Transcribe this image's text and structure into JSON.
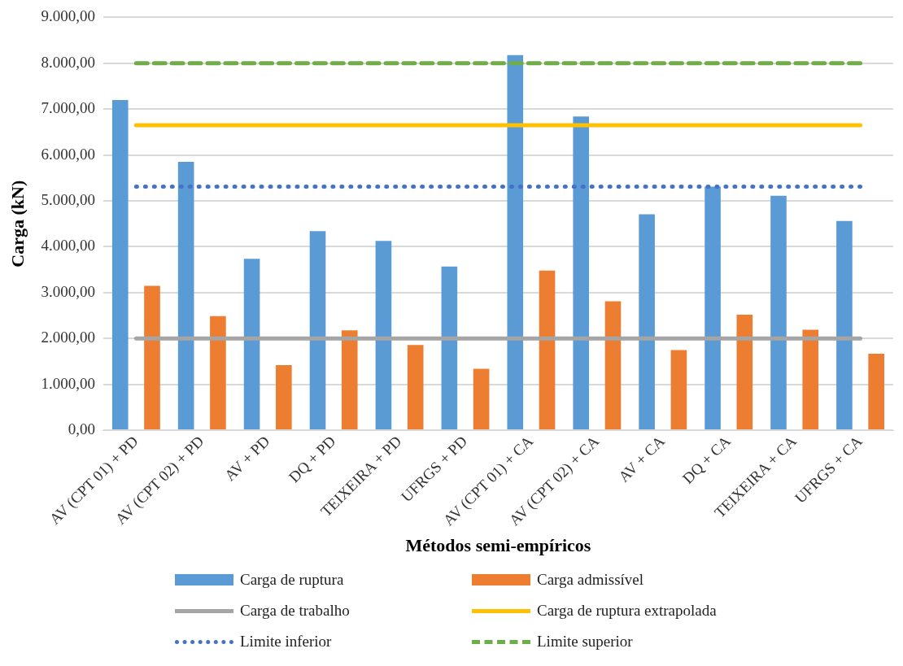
{
  "chart_data": {
    "type": "bar",
    "xlabel": "Métodos semi-empíricos",
    "ylabel": "Carga (kN)",
    "categories": [
      "AV (CPT 01) + PD",
      "AV (CPT 02) + PD",
      "AV + PD",
      "DQ + PD",
      "TEIXEIRA + PD",
      "UFRGS + PD",
      "AV (CPT 01) + CA",
      "AV (CPT 02) + CA",
      "AV + CA",
      "DQ + CA",
      "TEIXEIRA + CA",
      "UFRGS + CA"
    ],
    "series": [
      {
        "name": "Carga de ruptura",
        "color": "#5b9bd5",
        "values": [
          7200,
          5850,
          3740,
          4340,
          4130,
          3570,
          8180,
          6840,
          4710,
          5310,
          5110,
          4560
        ]
      },
      {
        "name": "Carga admissível",
        "color": "#ed7d31",
        "values": [
          3150,
          2490,
          1420,
          2180,
          1860,
          1340,
          3480,
          2810,
          1750,
          2520,
          2190,
          1670
        ]
      },
      {
        "name": "Carga de trabalho",
        "type": "line",
        "color": "#a5a5a5",
        "line_style": "solid",
        "values": [
          2000,
          2000,
          2000,
          2000,
          2000,
          2000,
          2000,
          2000,
          2000,
          2000,
          2000,
          2000
        ]
      },
      {
        "name": "Carga de ruptura extrapolada",
        "type": "line",
        "color": "#ffc000",
        "line_style": "solid",
        "values": [
          6650,
          6650,
          6650,
          6650,
          6650,
          6650,
          6650,
          6650,
          6650,
          6650,
          6650,
          6650
        ]
      },
      {
        "name": "Limite inferior",
        "type": "line",
        "color": "#4472c4",
        "line_style": "dotted",
        "values": [
          5310,
          5310,
          5310,
          5310,
          5310,
          5310,
          5310,
          5310,
          5310,
          5310,
          5310,
          5310
        ]
      },
      {
        "name": "Limite superior",
        "type": "line",
        "color": "#70ad47",
        "line_style": "dashed",
        "values": [
          8000,
          8000,
          8000,
          8000,
          8000,
          8000,
          8000,
          8000,
          8000,
          8000,
          8000,
          8000
        ]
      }
    ],
    "ylim": [
      0,
      9000
    ],
    "yticks": [
      {
        "value": 0,
        "label": "0,00"
      },
      {
        "value": 1000,
        "label": "1.000,00"
      },
      {
        "value": 2000,
        "label": "2.000,00"
      },
      {
        "value": 3000,
        "label": "3.000,00"
      },
      {
        "value": 4000,
        "label": "4.000,00"
      },
      {
        "value": 5000,
        "label": "5.000,00"
      },
      {
        "value": 6000,
        "label": "6.000,00"
      },
      {
        "value": 7000,
        "label": "7.000,00"
      },
      {
        "value": 8000,
        "label": "8.000,00"
      },
      {
        "value": 9000,
        "label": "9.000,00"
      }
    ],
    "grid": "y",
    "legend": "bottom",
    "marker": "none"
  }
}
